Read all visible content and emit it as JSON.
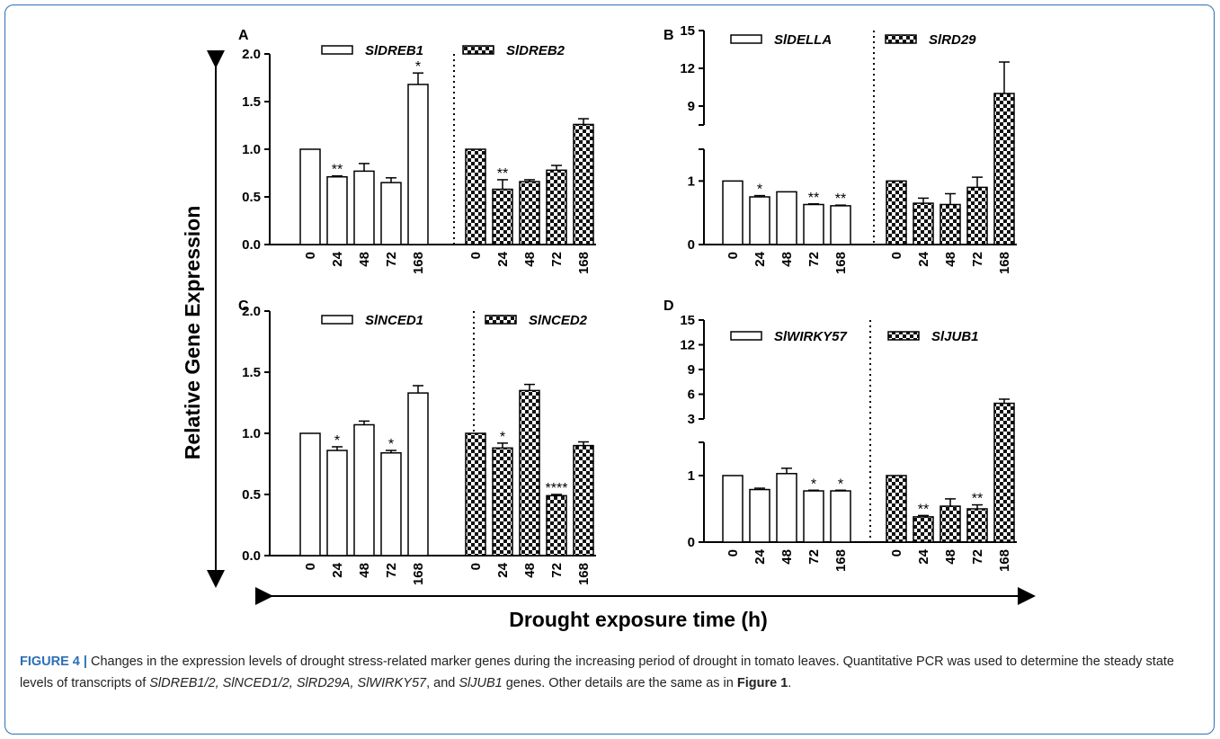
{
  "figure": {
    "y_axis_label": "Relative Gene Expression",
    "x_axis_label": "Drought exposure time (h)",
    "caption": {
      "figure_label": "FIGURE 4 |",
      "text_1": " Changes in the expression levels of drought stress-related marker genes during the increasing period of drought in tomato leaves. Quantitative PCR was used to determine the steady state levels of transcripts of ",
      "genes_1": "SlDREB1/2, SlNCED1/2, SlRD29A, SlWIRKY57",
      "text_2": ", and ",
      "genes_2": "SlJUB1",
      "text_3": " genes. Other details are the same as in ",
      "figure_ref": "Figure 1",
      "text_4": "."
    }
  },
  "colors": {
    "open_bar": "#ffffff",
    "checker_dark": "#111111",
    "axis": "#000000",
    "caption_blue": "#2b6fb6"
  },
  "chart_data": [
    {
      "panel": "A",
      "type": "bar",
      "categories": [
        "0",
        "24",
        "48",
        "72",
        "168"
      ],
      "ylim": [
        0,
        2.0
      ],
      "y_ticks": [
        "0.0",
        "0.5",
        "1.0",
        "1.5",
        "2.0"
      ],
      "series": [
        {
          "name": "SlDREB1",
          "pattern": "open",
          "values": [
            1.0,
            0.71,
            0.77,
            0.65,
            1.68
          ],
          "errors": [
            0,
            0.01,
            0.08,
            0.05,
            0.12
          ],
          "sig": [
            "",
            "**",
            "",
            "",
            "*"
          ]
        },
        {
          "name": "SlDREB2",
          "pattern": "checker",
          "values": [
            1.0,
            0.58,
            0.66,
            0.78,
            1.26
          ],
          "errors": [
            0,
            0.1,
            0.02,
            0.05,
            0.06
          ],
          "sig": [
            "",
            "**",
            "",
            "",
            ""
          ]
        }
      ]
    },
    {
      "panel": "B",
      "type": "bar",
      "broken_axis": true,
      "categories": [
        "0",
        "24",
        "48",
        "72",
        "168"
      ],
      "ylim_lower": [
        0,
        1.5
      ],
      "ylim_upper": [
        7.5,
        15
      ],
      "y_ticks": [
        "0",
        "1",
        "9",
        "12",
        "15"
      ],
      "series": [
        {
          "name": "SlDELLA",
          "pattern": "open",
          "values": [
            1.0,
            0.75,
            0.83,
            0.63,
            0.61
          ],
          "errors": [
            0,
            0.02,
            0,
            0.01,
            0.01
          ],
          "sig": [
            "",
            "*",
            "",
            "**",
            "**"
          ]
        },
        {
          "name": "SlRD29",
          "pattern": "checker",
          "values": [
            1.0,
            0.65,
            0.63,
            0.9,
            10.0
          ],
          "errors": [
            0,
            0.08,
            0.17,
            0.16,
            2.5
          ],
          "sig": [
            "",
            "",
            "",
            "",
            ""
          ]
        }
      ]
    },
    {
      "panel": "C",
      "type": "bar",
      "categories": [
        "0",
        "24",
        "48",
        "72",
        "168"
      ],
      "ylim": [
        0,
        2.0
      ],
      "y_ticks": [
        "0.0",
        "0.5",
        "1.0",
        "1.5",
        "2.0"
      ],
      "series": [
        {
          "name": "SlNCED1",
          "pattern": "open",
          "values": [
            1.0,
            0.86,
            1.07,
            0.84,
            1.33
          ],
          "errors": [
            0,
            0.03,
            0.03,
            0.02,
            0.06
          ],
          "sig": [
            "",
            "*",
            "",
            "*",
            ""
          ]
        },
        {
          "name": "SlNCED2",
          "pattern": "checker",
          "values": [
            1.0,
            0.88,
            1.35,
            0.49,
            0.9
          ],
          "errors": [
            0,
            0.04,
            0.05,
            0.01,
            0.03
          ],
          "sig": [
            "",
            "*",
            "",
            "****",
            ""
          ]
        }
      ]
    },
    {
      "panel": "D",
      "type": "bar",
      "broken_axis": true,
      "categories": [
        "0",
        "24",
        "48",
        "72",
        "168"
      ],
      "ylim_lower": [
        0,
        1.5
      ],
      "ylim_upper": [
        3,
        15
      ],
      "y_ticks": [
        "0",
        "1",
        "3",
        "6",
        "9",
        "12",
        "15"
      ],
      "series": [
        {
          "name": "SlWIRKY57",
          "pattern": "open",
          "values": [
            1.0,
            0.79,
            1.03,
            0.77,
            0.77
          ],
          "errors": [
            0,
            0.02,
            0.08,
            0.01,
            0.01
          ],
          "sig": [
            "",
            "",
            "",
            "*",
            "*"
          ]
        },
        {
          "name": "SlJUB1",
          "pattern": "checker",
          "values": [
            1.0,
            0.38,
            0.54,
            0.5,
            4.9
          ],
          "errors": [
            0,
            0.02,
            0.11,
            0.06,
            0.5
          ],
          "sig": [
            "",
            "**",
            "",
            "**",
            ""
          ]
        }
      ]
    }
  ]
}
